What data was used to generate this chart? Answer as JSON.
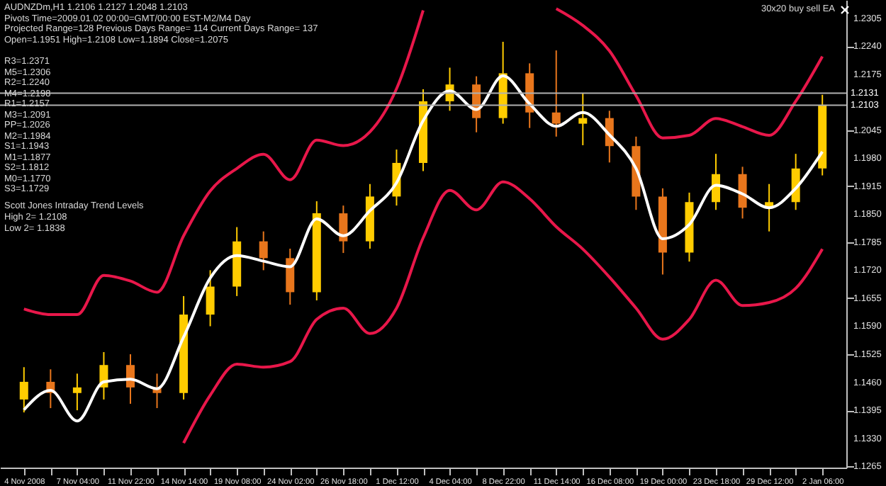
{
  "chart_data": {
    "type": "candlestick",
    "title": "AUDNZDm,H1  1.2106 1.2127 1.2048 1.2103",
    "annotations": [
      "Pivots Time=2009.01.02 00:00=GMT/00:00 EST-M2/M4 Day",
      "Projected Range=128 Previous Days Range= 114 Current Days Range= 137",
      "Open=1.1951 High=1.2108 Low=1.1894 Close=1.2075",
      "R3=1.2371",
      "M5=1.2306",
      "R2=1.2240",
      "M4=1.2198",
      "R1=1.2157",
      "M3=1.2091",
      "PP=1.2026",
      "M2=1.1984",
      "S1=1.1943",
      "M1=1.1877",
      "S2=1.1812",
      "M0=1.1770",
      "S3=1.1729",
      "Scott Jones Intraday Trend Levels",
      "High 2= 1.2108",
      "Low 2= 1.1838",
      "30x20 buy sell EA"
    ],
    "categories": [
      "4 Nov 2008",
      null,
      "7 Nov 04:00",
      null,
      "11 Nov 22:00",
      null,
      "14 Nov 14:00",
      null,
      "19 Nov 08:00",
      null,
      "24 Nov 02:00",
      null,
      "26 Nov 18:00",
      null,
      "1 Dec 12:00",
      null,
      "4 Dec 04:00",
      null,
      "8 Dec 22:00",
      null,
      "11 Dec 14:00",
      null,
      "16 Dec 08:00",
      null,
      "19 Dec 00:00",
      null,
      "23 Dec 18:00",
      null,
      "29 Dec 12:00",
      null,
      "2 Jan 06:00"
    ],
    "ohlc": [
      [
        1.142,
        1.1495,
        1.139,
        1.1461
      ],
      [
        1.1461,
        1.149,
        1.14,
        1.1435
      ],
      [
        1.1435,
        1.148,
        1.1395,
        1.1448
      ],
      [
        1.1448,
        1.153,
        1.142,
        1.15
      ],
      [
        1.15,
        1.1525,
        1.141,
        1.1448
      ],
      [
        1.1448,
        1.148,
        1.14,
        1.1435
      ],
      [
        1.1435,
        1.166,
        1.142,
        1.1617
      ],
      [
        1.1617,
        1.172,
        1.159,
        1.1682
      ],
      [
        1.1682,
        1.182,
        1.166,
        1.1787
      ],
      [
        1.1787,
        1.181,
        1.172,
        1.1748
      ],
      [
        1.1748,
        1.177,
        1.164,
        1.1669
      ],
      [
        1.1669,
        1.188,
        1.165,
        1.1852
      ],
      [
        1.1852,
        1.187,
        1.176,
        1.1787
      ],
      [
        1.1787,
        1.192,
        1.177,
        1.1891
      ],
      [
        1.1891,
        1.2,
        1.187,
        1.1969
      ],
      [
        1.1969,
        1.214,
        1.195,
        1.2112
      ],
      [
        1.2112,
        1.219,
        1.209,
        1.2151
      ],
      [
        1.2151,
        1.217,
        1.204,
        1.2073
      ],
      [
        1.2073,
        1.225,
        1.206,
        1.2177
      ],
      [
        1.2177,
        1.22,
        1.205,
        1.2086
      ],
      [
        1.2086,
        1.223,
        1.203,
        1.206
      ],
      [
        1.206,
        1.213,
        1.201,
        1.2073
      ],
      [
        1.2073,
        1.209,
        1.197,
        1.2008
      ],
      [
        1.2008,
        1.203,
        1.186,
        1.1891
      ],
      [
        1.1891,
        1.191,
        1.171,
        1.1761
      ],
      [
        1.1761,
        1.19,
        1.174,
        1.1878
      ],
      [
        1.1878,
        1.199,
        1.186,
        1.1943
      ],
      [
        1.1943,
        1.196,
        1.184,
        1.1865
      ],
      [
        1.1865,
        1.192,
        1.181,
        1.1878
      ],
      [
        1.1878,
        1.199,
        1.186,
        1.1956
      ],
      [
        1.1956,
        1.2127,
        1.194,
        1.2103
      ]
    ],
    "colors": [
      "#ffcc00",
      "#e8761c",
      "#ffcc00",
      "#ffcc00",
      "#e8761c",
      "#e8761c",
      "#ffcc00",
      "#ffcc00",
      "#ffcc00",
      "#e8761c",
      "#e8761c",
      "#ffcc00",
      "#e8761c",
      "#ffcc00",
      "#ffcc00",
      "#ffcc00",
      "#ffcc00",
      "#e8761c",
      "#ffcc00",
      "#e8761c",
      "#e8761c",
      "#ffcc00",
      "#e8761c",
      "#e8761c",
      "#e8761c",
      "#ffcc00",
      "#ffcc00",
      "#e8761c",
      "#ffcc00",
      "#ffcc00",
      "#ffcc00"
    ],
    "series": [
      {
        "type": "line",
        "color": "#ffffff",
        "values": [
          1.1396,
          1.1441,
          1.137,
          1.1461,
          1.1467,
          1.1445,
          1.1565,
          1.1702,
          1.1754,
          1.1741,
          1.1728,
          1.1839,
          1.18,
          1.1858,
          1.1923,
          1.2067,
          1.2136,
          1.2093,
          1.2171,
          1.2106,
          1.2054,
          1.2086,
          1.2034,
          1.1956,
          1.1793,
          1.1826,
          1.1917,
          1.1897,
          1.1865,
          1.191,
          1.1995
        ]
      },
      {
        "type": "line",
        "color": "#e8174a",
        "values": [
          1.163,
          1.1617,
          1.1617,
          1.1708,
          1.1695,
          1.1669,
          1.18,
          1.1904,
          1.1956,
          1.1989,
          1.193,
          1.2022,
          1.2009,
          1.2041,
          1.2141,
          1.2323,
          null,
          null,
          null,
          null,
          1.2327,
          1.2288,
          1.2229,
          1.2125,
          1.2027,
          1.2033,
          1.2072,
          1.2053,
          1.2033,
          1.2112,
          1.2216
        ]
      },
      {
        "type": "line",
        "color": "#e8174a",
        "values": [
          null,
          null,
          null,
          null,
          null,
          null,
          1.1319,
          1.143,
          1.1502,
          1.1495,
          1.1508,
          1.1606,
          1.1632,
          1.1573,
          1.1632,
          1.1795,
          1.1905,
          1.186,
          1.1925,
          1.1886,
          1.1821,
          1.1769,
          1.1704,
          1.1632,
          1.156,
          1.1606,
          1.1697,
          1.1638,
          1.1645,
          1.1678,
          1.1769
        ]
      }
    ],
    "ylim": [
      1.1262,
      1.2347
    ],
    "yticks": [
      1.2305,
      {
        "value": 1.224,
        "label": "1.2240"
      },
      1.2175,
      1.2045,
      {
        "value": 1.198,
        "label": "1.1980"
      },
      1.1915,
      {
        "value": 1.185,
        "label": "1.1850"
      },
      1.1785,
      {
        "value": 1.172,
        "label": "1.1720"
      },
      1.1655,
      {
        "value": 1.159,
        "label": "1.1590"
      },
      1.1525,
      {
        "value": 1.146,
        "label": "1.1460"
      },
      1.1395,
      {
        "value": 1.133,
        "label": "1.1330"
      },
      1.1265
    ],
    "ref_lines": [
      {
        "axis": "y",
        "value": 1.2131,
        "label": "1.2131",
        "color": "#b0b0b0"
      },
      {
        "axis": "y",
        "value": 1.2103,
        "label": "1.2103",
        "color": "#b0b0b0"
      }
    ]
  }
}
